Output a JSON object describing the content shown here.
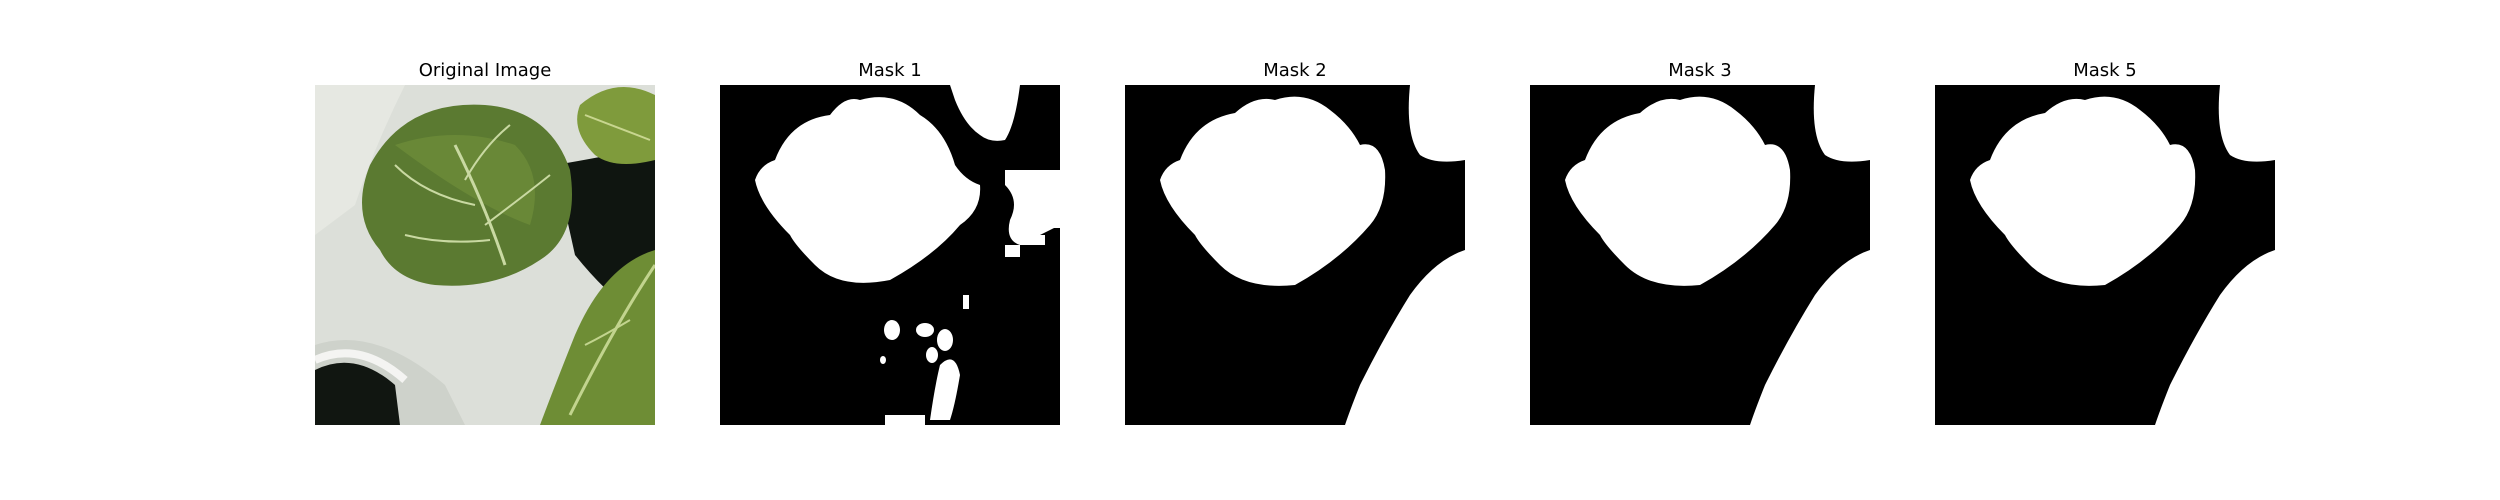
{
  "figure": {
    "panels": [
      {
        "title": "Original Image",
        "kind": "photo"
      },
      {
        "title": "Mask 1",
        "kind": "mask"
      },
      {
        "title": "Mask 2",
        "kind": "mask"
      },
      {
        "title": "Mask 3",
        "kind": "mask"
      },
      {
        "title": "Mask 5",
        "kind": "mask"
      }
    ]
  },
  "colors": {
    "mask_background": "#000000",
    "mask_foreground": "#ffffff",
    "leaf_dark": "#4e6b2c",
    "leaf_light": "#8ea653",
    "tray": "#d9dcd6"
  }
}
